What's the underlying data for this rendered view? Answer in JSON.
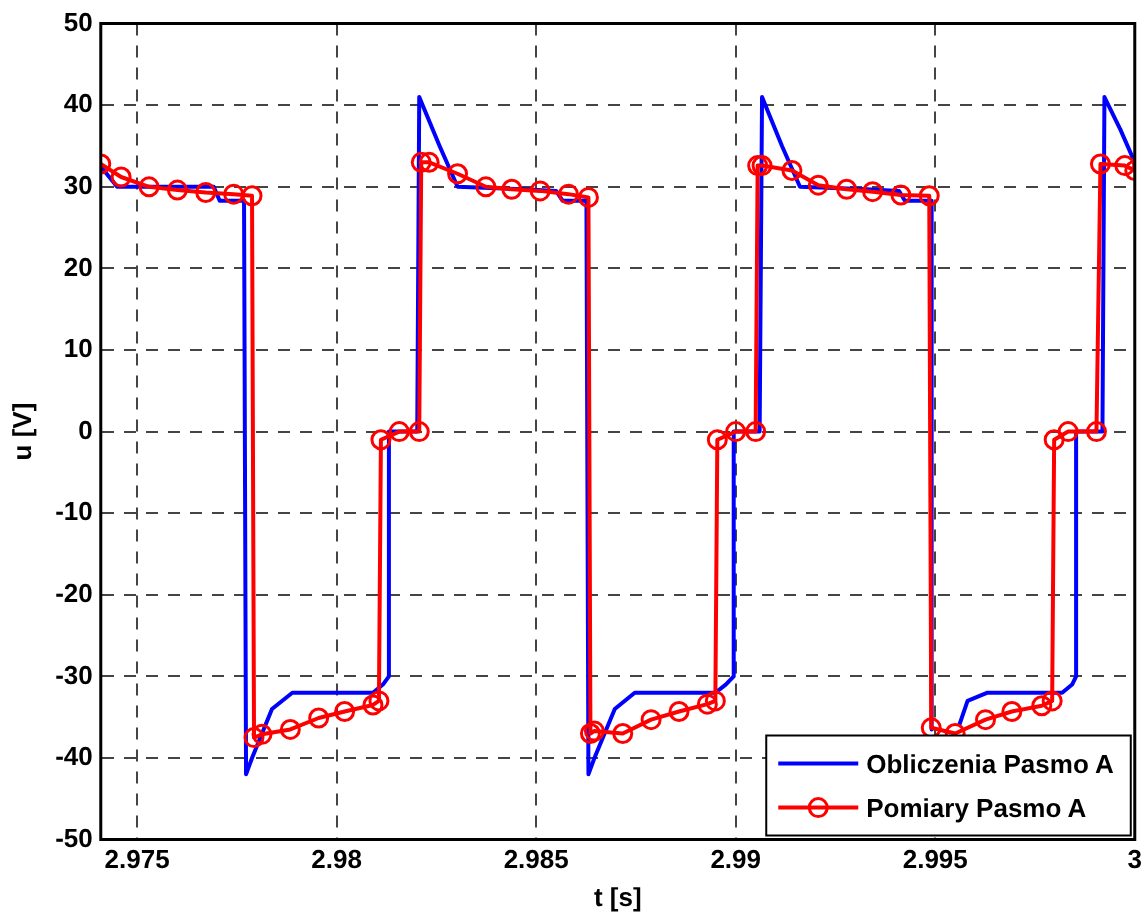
{
  "chart_data": {
    "type": "line",
    "xlabel": "t [s]",
    "ylabel": "u [V]",
    "xlim": [
      2.97409,
      3
    ],
    "xticks": [
      2.975,
      2.98,
      2.985,
      2.99,
      2.995,
      3
    ],
    "ylim": [
      -50,
      50
    ],
    "yticks": [
      -50,
      -40,
      -30,
      -20,
      -10,
      0,
      10,
      20,
      30,
      40,
      50
    ],
    "grid": true,
    "legend": "bottom right",
    "series": [
      {
        "name": "Obliczenia Pasmo A",
        "color": "#0000ff",
        "marker": "none",
        "x": [
          2.97409,
          2.9745,
          2.97692,
          2.97707,
          2.97768,
          2.97773,
          2.97788,
          2.97838,
          2.97889,
          2.98091,
          2.98116,
          2.98131,
          2.98131,
          2.98202,
          2.98207,
          2.98258,
          2.98303,
          2.9847,
          2.9855,
          2.98566,
          2.98626,
          2.98631,
          2.98646,
          2.98697,
          2.98747,
          2.98949,
          2.98975,
          2.98995,
          2.98995,
          2.9906,
          2.99066,
          2.99116,
          2.99161,
          2.99328,
          2.99409,
          2.99424,
          2.9949,
          2.99491,
          2.99495,
          2.9956,
          2.99581,
          2.99631,
          2.99818,
          2.99843,
          2.99853,
          2.99853,
          2.99919,
          2.99924,
          2.99964,
          3
        ],
        "values": [
          32.5,
          30,
          30,
          28.3,
          28.3,
          -42,
          -40,
          -34,
          -32,
          -32,
          -31,
          -30,
          0,
          0,
          41,
          35,
          30,
          29.7,
          29.5,
          28.3,
          28.3,
          -42,
          -40,
          -34,
          -32,
          -32,
          -31,
          -30,
          0,
          0,
          41,
          35,
          30,
          29.7,
          29.5,
          28.3,
          28.3,
          -36.5,
          null,
          -36,
          -33,
          -32,
          -32,
          -31,
          -30,
          0,
          0,
          41,
          37,
          33
        ]
      },
      {
        "name": "Pomiary Pasmo A",
        "color": "#ff0000",
        "marker": "circle",
        "x": [
          2.97409,
          2.9746,
          2.9753,
          2.97601,
          2.97672,
          2.97742,
          2.97788,
          2.97793,
          2.97813,
          2.97884,
          2.97955,
          2.9802,
          2.98091,
          2.98106,
          2.98111,
          2.98157,
          2.98207,
          2.98212,
          2.98232,
          2.98303,
          2.98374,
          2.98439,
          2.9851,
          2.98581,
          2.98631,
          2.98636,
          2.98646,
          2.98717,
          2.98788,
          2.98858,
          2.98929,
          2.98949,
          2.98954,
          2.99,
          2.9905,
          2.99055,
          2.99066,
          2.99141,
          2.99207,
          2.99278,
          2.99343,
          2.99414,
          2.99485,
          2.9949,
          2.9955,
          2.99626,
          2.99692,
          2.99767,
          2.99793,
          2.99798,
          2.99833,
          2.99904,
          2.99914,
          2.99975,
          3
        ],
        "values": [
          32.8,
          31.2,
          30,
          29.6,
          29.3,
          29.1,
          28.9,
          -37.5,
          -37.1,
          -36.5,
          -35.1,
          -34.3,
          -33.5,
          -33,
          -1,
          0,
          0,
          33,
          33,
          31.6,
          30,
          29.7,
          29.5,
          29.1,
          28.7,
          -37,
          -36.7,
          -37,
          -35.3,
          -34.3,
          -33.4,
          -33,
          -1,
          0,
          0,
          32.6,
          32.6,
          32,
          30.2,
          29.7,
          29.4,
          29,
          28.9,
          -36.3,
          -37,
          -35.3,
          -34.3,
          -33.6,
          -33,
          -1,
          0,
          0,
          32.8,
          32.6,
          32
        ]
      }
    ]
  }
}
